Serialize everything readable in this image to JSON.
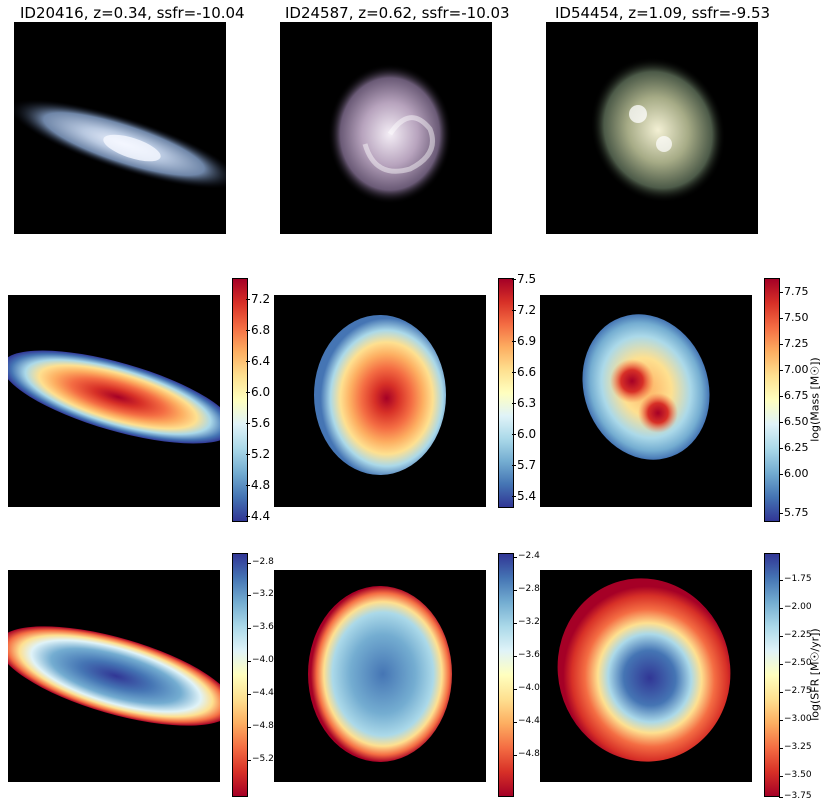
{
  "row_titles": [
    "ID20416, z=0.34, ssfr=-10.04",
    "ID24587, z=0.62, ssfr=-10.03",
    "ID54454, z=1.09, ssfr=-9.53"
  ],
  "mass_colorbars": [
    {
      "ticks": [
        "7.2",
        "6.8",
        "6.4",
        "6.0",
        "5.6",
        "5.2",
        "4.8",
        "4.4"
      ],
      "label": ""
    },
    {
      "ticks": [
        "7.5",
        "7.2",
        "6.9",
        "6.6",
        "6.3",
        "6.0",
        "5.7",
        "5.4"
      ],
      "label": ""
    },
    {
      "ticks": [
        "7.75",
        "7.50",
        "7.25",
        "7.00",
        "6.75",
        "6.50",
        "6.25",
        "6.00",
        "5.75"
      ],
      "label": "log(Mass [M☉])"
    }
  ],
  "sfr_colorbars": [
    {
      "ticks": [
        "−2.8",
        "−3.2",
        "−3.6",
        "−4.0",
        "−4.4",
        "−4.8",
        "−5.2"
      ],
      "label": ""
    },
    {
      "ticks": [
        "−2.4",
        "−2.8",
        "−3.2",
        "−3.6",
        "−4.0",
        "−4.4",
        "−4.8"
      ],
      "label": ""
    },
    {
      "ticks": [
        "−1.75",
        "−2.00",
        "−2.25",
        "−2.50",
        "−2.75",
        "−3.00",
        "−3.25",
        "−3.50",
        "−3.75"
      ],
      "label": "log(SFR [M☉/yr])"
    }
  ]
}
